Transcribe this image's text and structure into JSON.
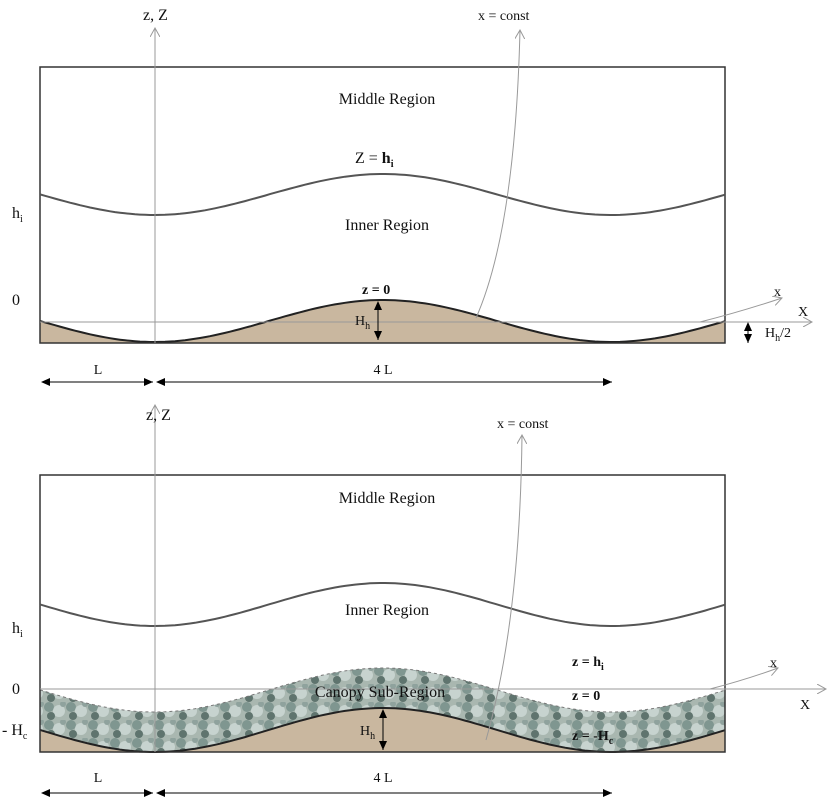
{
  "top": {
    "axis_label": "z, Z",
    "const_label": "x = const",
    "middle": "Middle Region",
    "interface_label": {
      "main": "Z = ",
      "bold": "h",
      "sub": "i"
    },
    "h_label": {
      "main": "h",
      "sub": "i"
    },
    "inner": "Inner Region",
    "zero": "0",
    "surface_label": "z = 0",
    "x_label": "x",
    "X_label": "X",
    "height_label": {
      "main": "H",
      "sub": "h"
    },
    "half_height_label": {
      "main": "H",
      "sub": "h",
      "suffix": "/2"
    },
    "L_label": "L",
    "period_label": "4 L"
  },
  "bottom": {
    "axis_label": "z, Z",
    "const_label": "x = const",
    "middle": "Middle Region",
    "h_label": {
      "main": "h",
      "sub": "i"
    },
    "inner": "Inner Region",
    "interface_label": {
      "main": "z = ",
      "bold": "h",
      "sub": "i"
    },
    "zero": "0",
    "canopy": "Canopy Sub-Region",
    "surface_label": "z = 0",
    "x_label": "x",
    "X_label": "X",
    "canopy_depth_label": {
      "main": "- H",
      "sub": "c"
    },
    "height_label": {
      "main": "H",
      "sub": "h"
    },
    "ground_label": {
      "main": "z = -H",
      "sub": "c"
    },
    "L_label": "L",
    "period_label": "4 L"
  }
}
